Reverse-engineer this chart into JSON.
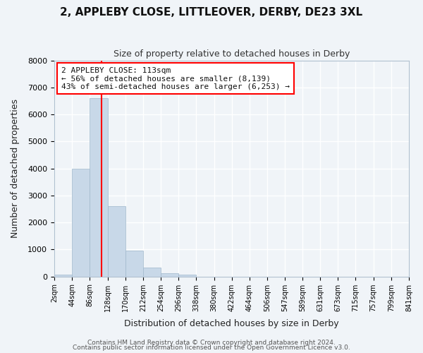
{
  "title": "2, APPLEBY CLOSE, LITTLEOVER, DERBY, DE23 3XL",
  "subtitle": "Size of property relative to detached houses in Derby",
  "xlabel": "Distribution of detached houses by size in Derby",
  "ylabel": "Number of detached properties",
  "bar_color": "#c8d8e8",
  "bar_edge_color": "#a0b8cc",
  "background_color": "#f0f4f8",
  "grid_color": "white",
  "annotation_line_color": "#ff0000",
  "annotation_text": "2 APPLEBY CLOSE: 113sqm\n← 56% of detached houses are smaller (8,139)\n43% of semi-detached houses are larger (6,253) →",
  "property_size": 113,
  "ylim": [
    0,
    8000
  ],
  "yticks": [
    0,
    1000,
    2000,
    3000,
    4000,
    5000,
    6000,
    7000,
    8000
  ],
  "bin_edges": [
    2,
    44,
    86,
    128,
    170,
    212,
    254,
    296,
    338,
    380,
    422,
    464,
    506,
    547,
    589,
    631,
    673,
    715,
    757,
    799,
    841
  ],
  "bin_values": [
    60,
    4000,
    6600,
    2600,
    950,
    330,
    130,
    80,
    0,
    0,
    0,
    0,
    0,
    0,
    0,
    0,
    0,
    0,
    0,
    0
  ],
  "tick_labels": [
    "2sqm",
    "44sqm",
    "86sqm",
    "128sqm",
    "170sqm",
    "212sqm",
    "254sqm",
    "296sqm",
    "338sqm",
    "380sqm",
    "422sqm",
    "464sqm",
    "506sqm",
    "547sqm",
    "589sqm",
    "631sqm",
    "673sqm",
    "715sqm",
    "757sqm",
    "799sqm",
    "841sqm"
  ],
  "footer1": "Contains HM Land Registry data © Crown copyright and database right 2024.",
  "footer2": "Contains public sector information licensed under the Open Government Licence v3.0."
}
